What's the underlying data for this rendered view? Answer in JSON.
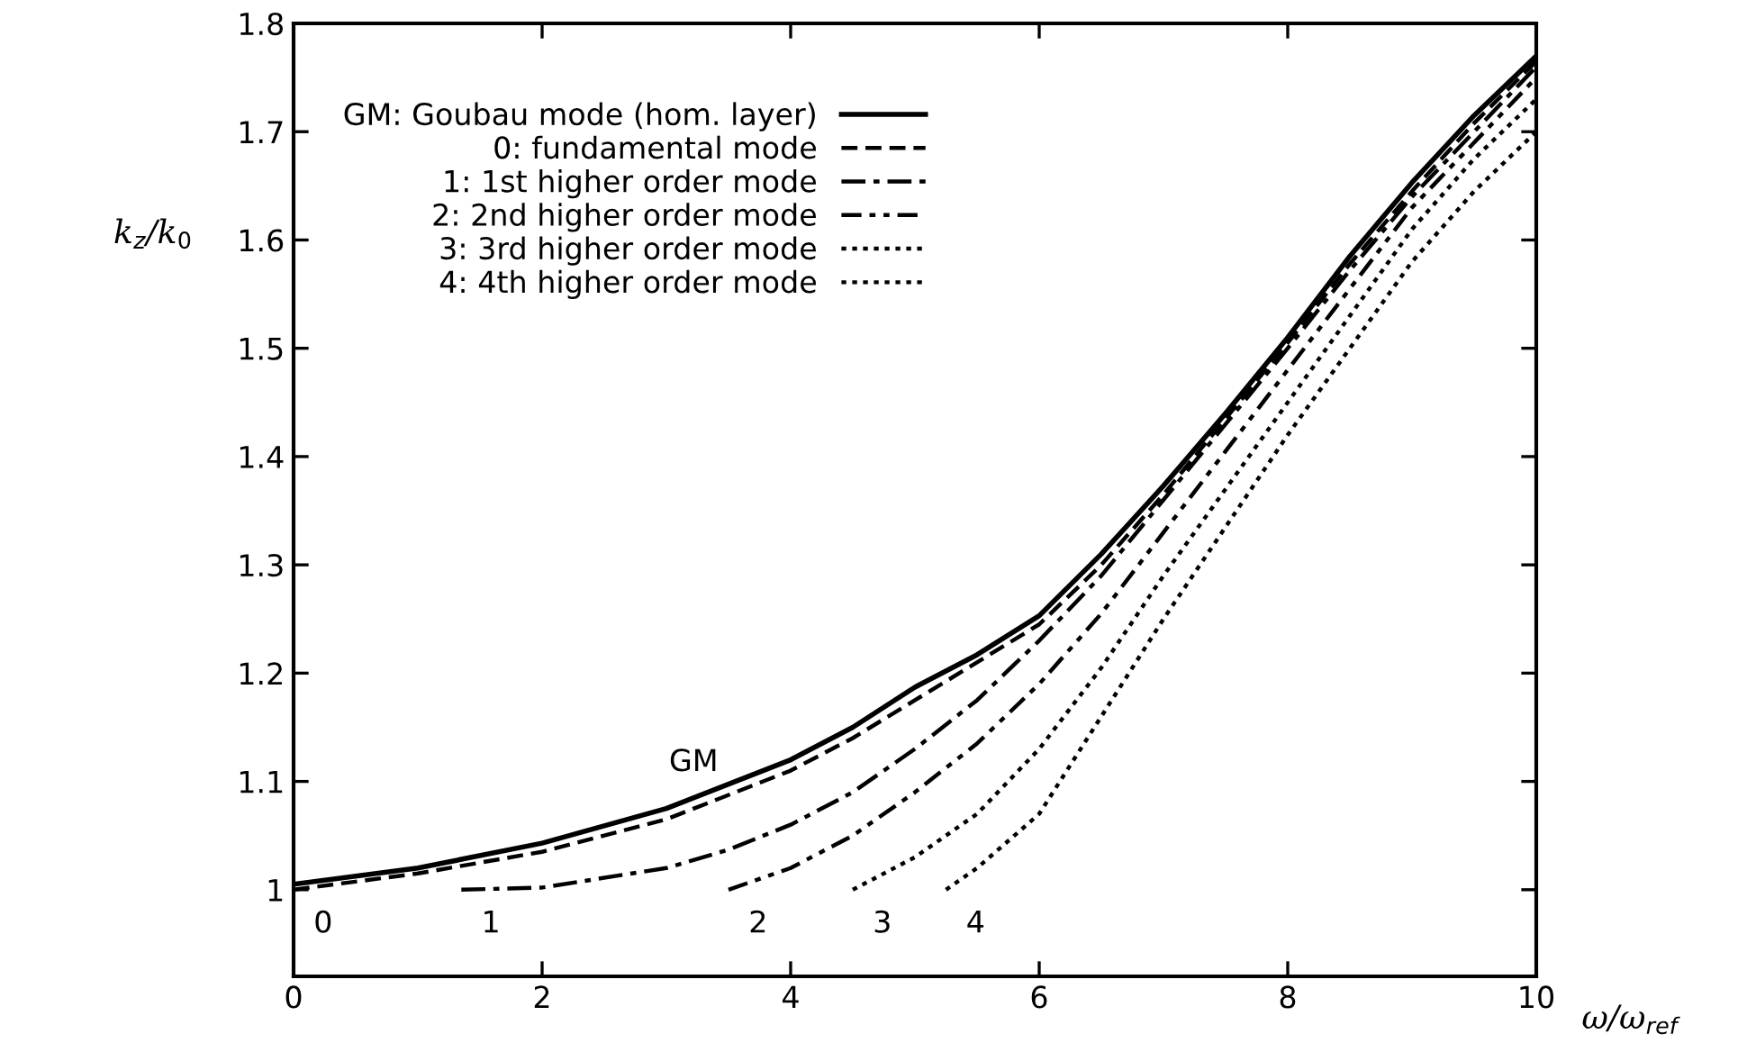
{
  "chart_data": {
    "type": "line",
    "xlabel": "ω/ω$_{ref}$",
    "ylabel": "k$_{z}$/k$_{0}$",
    "xlim": [
      0,
      10
    ],
    "ylim": [
      0.92,
      1.8
    ],
    "xticks": [
      0,
      2,
      4,
      6,
      8,
      10
    ],
    "yticks": [
      1,
      1.1,
      1.2,
      1.3,
      1.4,
      1.5,
      1.6,
      1.7,
      1.8
    ],
    "legend": "top left",
    "grid": false,
    "marker": "none",
    "series": [
      {
        "name": "GM: Goubau mode (hom. layer)",
        "color": "#000000",
        "line_style": "solid",
        "x": [
          0,
          1,
          2,
          3,
          4,
          4.5,
          5,
          5.5,
          6,
          6.5,
          7,
          7.5,
          8,
          8.5,
          9,
          9.5,
          10
        ],
        "values": [
          1.005,
          1.02,
          1.043,
          1.075,
          1.12,
          1.15,
          1.187,
          1.217,
          1.253,
          1.31,
          1.373,
          1.44,
          1.51,
          1.585,
          1.653,
          1.715,
          1.77
        ]
      },
      {
        "name": "0: fundamental mode",
        "color": "#000000",
        "line_style": "dashed",
        "x": [
          0,
          1,
          2,
          3,
          4,
          4.5,
          5,
          5.5,
          6,
          6.5,
          7,
          7.5,
          8,
          8.5,
          9,
          9.5,
          10
        ],
        "values": [
          1.0,
          1.015,
          1.035,
          1.065,
          1.11,
          1.14,
          1.175,
          1.21,
          1.245,
          1.3,
          1.365,
          1.435,
          1.505,
          1.578,
          1.645,
          1.708,
          1.765
        ]
      },
      {
        "name": "1: 1st higher order mode",
        "color": "#000000",
        "line_style": "dashdot",
        "x": [
          1.35,
          2,
          3,
          3.5,
          4,
          4.5,
          5,
          5.5,
          6,
          6.5,
          7,
          7.5,
          8,
          8.5,
          9,
          9.5,
          10
        ],
        "values": [
          1.0,
          1.002,
          1.02,
          1.037,
          1.06,
          1.09,
          1.13,
          1.175,
          1.23,
          1.29,
          1.36,
          1.43,
          1.5,
          1.572,
          1.64,
          1.7,
          1.76
        ]
      },
      {
        "name": "2: 2nd higher order mode",
        "color": "#000000",
        "line_style": "dashdotdot",
        "x": [
          3.5,
          4,
          4.5,
          5,
          5.5,
          6,
          6.5,
          7,
          7.5,
          8,
          8.5,
          9,
          9.5,
          10
        ],
        "values": [
          1.0,
          1.02,
          1.05,
          1.09,
          1.135,
          1.19,
          1.255,
          1.33,
          1.405,
          1.48,
          1.555,
          1.63,
          1.69,
          1.75
        ]
      },
      {
        "name": "3: 3rd higher order mode",
        "color": "#000000",
        "line_style": "dotted",
        "x": [
          4.5,
          5,
          5.5,
          6,
          6.5,
          7,
          7.5,
          8,
          8.5,
          9,
          9.5,
          10
        ],
        "values": [
          1.0,
          1.03,
          1.07,
          1.13,
          1.205,
          1.29,
          1.37,
          1.45,
          1.53,
          1.61,
          1.675,
          1.73
        ]
      },
      {
        "name": "4: 4th higher order mode",
        "color": "#000000",
        "line_style": "dotted",
        "x": [
          5.25,
          5.5,
          6,
          6.5,
          7,
          7.5,
          8,
          8.5,
          9,
          9.5,
          10
        ],
        "values": [
          1.0,
          1.02,
          1.07,
          1.16,
          1.25,
          1.335,
          1.42,
          1.5,
          1.58,
          1.645,
          1.7
        ]
      }
    ],
    "annotations": [
      {
        "text": "GM",
        "x": 3.3,
        "y": 1.09
      },
      {
        "text": "0",
        "x": 0,
        "y": 1.0
      },
      {
        "text": "1",
        "x": 1.35,
        "y": 1.0
      },
      {
        "text": "2",
        "x": 3.5,
        "y": 1.0
      },
      {
        "text": "3",
        "x": 4.5,
        "y": 1.0
      },
      {
        "text": "4",
        "x": 5.25,
        "y": 1.0
      }
    ]
  }
}
